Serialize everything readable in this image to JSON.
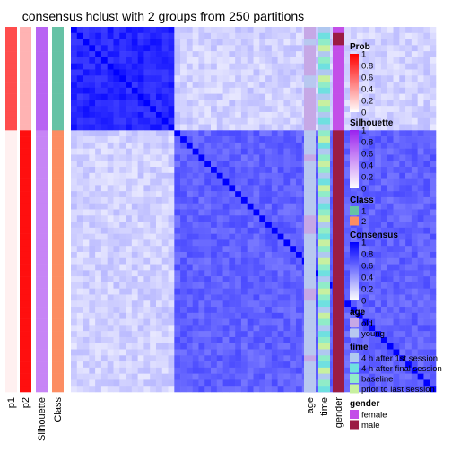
{
  "chart_data": {
    "type": "heatmap",
    "title": "consensus hclust with 2 groups from 250 partitions",
    "n_samples": 60,
    "left_annotations": [
      {
        "name": "p1",
        "palette": "prob"
      },
      {
        "name": "p2",
        "palette": "prob"
      },
      {
        "name": "Silhouette",
        "palette": "silhouette"
      },
      {
        "name": "Class",
        "palette": "class"
      }
    ],
    "right_annotations": [
      {
        "name": "age"
      },
      {
        "name": "time"
      },
      {
        "name": "gender"
      }
    ],
    "groups": [
      {
        "class": 1,
        "size": 17,
        "p1": 0.7,
        "p2": 0.3,
        "silhouette": 0.7
      },
      {
        "class": 2,
        "size": 43,
        "p1": 0.06,
        "p2": 0.94,
        "silhouette": 0.55
      }
    ],
    "consensus_levels": {
      "diagonal": 1.0,
      "within_group_1": 0.85,
      "within_group_2": 0.62,
      "between_groups": 0.18
    },
    "age": [
      "old",
      "old",
      "young",
      "old",
      "old",
      "old",
      "old",
      "old",
      "young",
      "young",
      "old",
      "old",
      "old",
      "old",
      "old",
      "old",
      "old",
      "young",
      "young",
      "young",
      "young",
      "old",
      "young",
      "young",
      "young",
      "young",
      "young",
      "young",
      "young",
      "young",
      "young",
      "old",
      "old",
      "old",
      "young",
      "young",
      "young",
      "young",
      "young",
      "young",
      "young",
      "young",
      "young",
      "old",
      "old",
      "young",
      "young",
      "young",
      "young",
      "young",
      "young",
      "young",
      "young",
      "young",
      "old",
      "young",
      "young",
      "young",
      "young",
      "young"
    ],
    "time": [
      "4h1",
      "final",
      "base",
      "prior",
      "4h1",
      "base",
      "final",
      "4h1",
      "prior",
      "base",
      "final",
      "4h1",
      "prior",
      "base",
      "4h1",
      "final",
      "4h1",
      "base",
      "prior",
      "final",
      "4h1",
      "base",
      "prior",
      "base",
      "4h1",
      "final",
      "prior",
      "base",
      "4h1",
      "final",
      "base",
      "prior",
      "4h1",
      "base",
      "final",
      "prior",
      "base",
      "4h1",
      "prior",
      "base",
      "final",
      "4h1",
      "base",
      "prior",
      "base",
      "final",
      "4h1",
      "prior",
      "base",
      "4h1",
      "final",
      "base",
      "prior",
      "4h1",
      "base",
      "final",
      "prior",
      "4h1",
      "base",
      "final"
    ],
    "gender": [
      "female",
      "male",
      "male",
      "female",
      "female",
      "female",
      "female",
      "female",
      "female",
      "female",
      "female",
      "female",
      "female",
      "female",
      "female",
      "female",
      "female",
      "male",
      "male",
      "male",
      "male",
      "male",
      "male",
      "male",
      "male",
      "male",
      "male",
      "male",
      "male",
      "male",
      "male",
      "male",
      "male",
      "male",
      "male",
      "male",
      "male",
      "male",
      "male",
      "male",
      "male",
      "male",
      "male",
      "male",
      "male",
      "male",
      "male",
      "male",
      "male",
      "male",
      "male",
      "male",
      "male",
      "male",
      "male",
      "male",
      "male",
      "male",
      "male",
      "male"
    ],
    "legends": [
      {
        "title": "Prob",
        "type": "continuous",
        "ticks": [
          "1",
          "0.8",
          "0.6",
          "0.4",
          "0.2",
          "0"
        ],
        "colors": [
          "#ff0000",
          "#ffffff"
        ]
      },
      {
        "title": "Silhouette",
        "type": "continuous",
        "ticks": [
          "1",
          "0.8",
          "0.6",
          "0.4",
          "0.2",
          "0"
        ],
        "colors": [
          "#9a22ee",
          "#ffffff"
        ]
      },
      {
        "title": "Class",
        "type": "discrete",
        "items": [
          {
            "label": "1",
            "color": "#66c2a5"
          },
          {
            "label": "2",
            "color": "#fc8d62"
          }
        ]
      },
      {
        "title": "Consensus",
        "type": "continuous",
        "ticks": [
          "1",
          "0.8",
          "0.6",
          "0.4",
          "0.2",
          "0"
        ],
        "colors": [
          "#0000ff",
          "#ffffff"
        ]
      },
      {
        "title": "age",
        "type": "discrete",
        "items": [
          {
            "label": "old",
            "color": "#c6a8e6"
          },
          {
            "label": "young",
            "color": "#b8c8f0"
          }
        ]
      },
      {
        "title": "time",
        "type": "discrete",
        "items": [
          {
            "label": "4 h after 1st session",
            "color": "#b0c8f0"
          },
          {
            "label": "4 h after final session",
            "color": "#6fe0e0"
          },
          {
            "label": "baseline",
            "color": "#90ecc8"
          },
          {
            "label": "prior to last session",
            "color": "#c8f0a0"
          }
        ]
      },
      {
        "title": "gender",
        "type": "discrete",
        "items": [
          {
            "label": "female",
            "color": "#c34ee8"
          },
          {
            "label": "male",
            "color": "#9b1c44"
          }
        ]
      }
    ]
  }
}
